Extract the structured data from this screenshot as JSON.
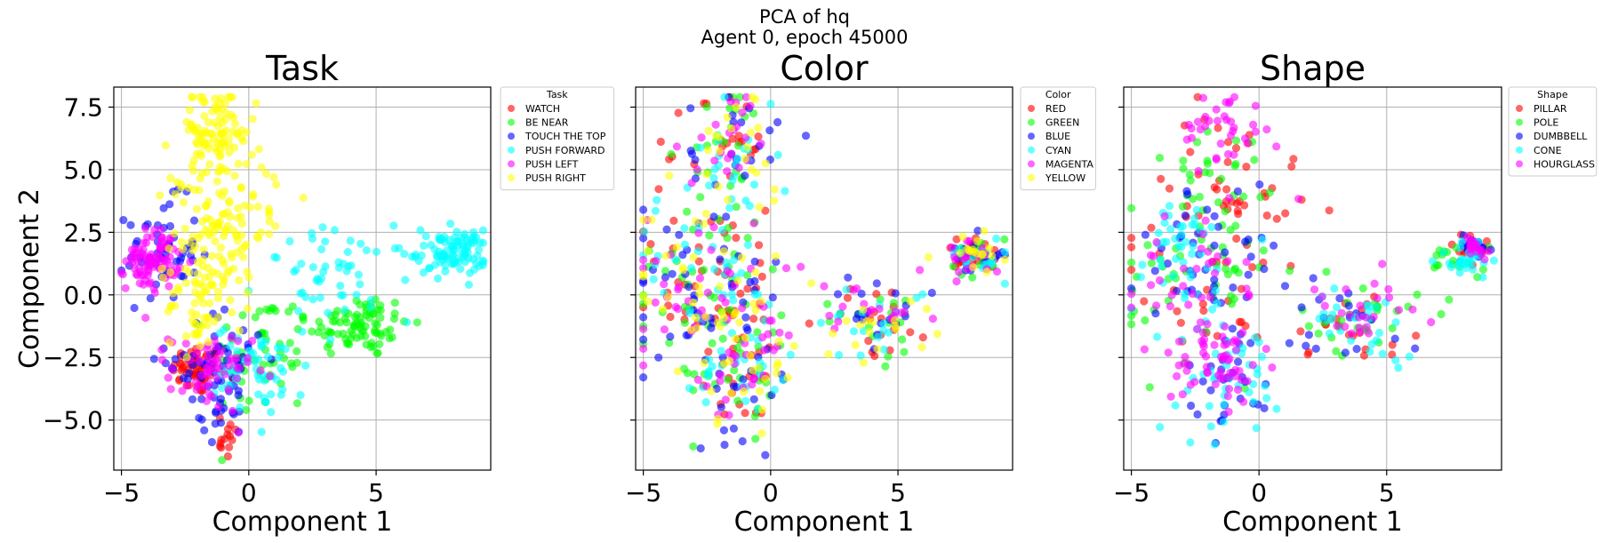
{
  "suptitle": {
    "line1": "PCA of hq",
    "line2": "Agent 0, epoch 45000"
  },
  "chart_data": [
    {
      "type": "scatter",
      "title": "Task",
      "xlabel": "Component 1",
      "ylabel": "Component 2",
      "xlim": [
        -5.3,
        9.5
      ],
      "ylim": [
        -7.0,
        8.3
      ],
      "xticks": [
        -5,
        0,
        5
      ],
      "yticks": [
        -5.0,
        -2.5,
        0.0,
        2.5,
        5.0,
        7.5
      ],
      "grid": true,
      "legend_title": "Task",
      "legend_placement": "outside upper right",
      "series": [
        {
          "name": "WATCH",
          "color": "#ff0000",
          "clusters": [
            {
              "cx": -2.0,
              "cy": -3.0,
              "sx": 0.5,
              "sy": 0.5,
              "n": 55
            },
            {
              "cx": -0.9,
              "cy": -5.6,
              "sx": 0.3,
              "sy": 0.5,
              "n": 14
            }
          ]
        },
        {
          "name": "BE NEAR",
          "color": "#00ff00",
          "clusters": [
            {
              "cx": 4.3,
              "cy": -1.2,
              "sx": 1.0,
              "sy": 0.65,
              "n": 90
            },
            {
              "cx": 0.5,
              "cy": -2.5,
              "sx": 1.0,
              "sy": 1.3,
              "n": 55
            }
          ]
        },
        {
          "name": "TOUCH THE TOP",
          "color": "#0000ff",
          "clusters": [
            {
              "cx": -3.4,
              "cy": 1.8,
              "sx": 0.7,
              "sy": 1.0,
              "n": 55
            },
            {
              "cx": -1.2,
              "cy": -2.6,
              "sx": 1.0,
              "sy": 1.0,
              "n": 55
            },
            {
              "cx": -1.0,
              "cy": -4.7,
              "sx": 0.4,
              "sy": 0.6,
              "n": 18
            }
          ]
        },
        {
          "name": "PUSH FORWARD",
          "color": "#00ffff",
          "clusters": [
            {
              "cx": 8.0,
              "cy": 1.7,
              "sx": 0.7,
              "sy": 0.45,
              "n": 95
            },
            {
              "cx": 3.5,
              "cy": 0.8,
              "sx": 1.5,
              "sy": 0.9,
              "n": 55
            },
            {
              "cx": 0.5,
              "cy": -3.0,
              "sx": 0.9,
              "sy": 0.9,
              "n": 55
            }
          ]
        },
        {
          "name": "PUSH LEFT",
          "color": "#ff00ff",
          "clusters": [
            {
              "cx": -3.8,
              "cy": 1.4,
              "sx": 0.5,
              "sy": 0.6,
              "n": 90
            },
            {
              "cx": -1.5,
              "cy": -3.1,
              "sx": 0.8,
              "sy": 0.8,
              "n": 60
            }
          ]
        },
        {
          "name": "PUSH RIGHT",
          "color": "#ffff00",
          "clusters": [
            {
              "cx": -1.4,
              "cy": 6.4,
              "sx": 0.8,
              "sy": 0.9,
              "n": 100
            },
            {
              "cx": -1.2,
              "cy": 2.5,
              "sx": 0.9,
              "sy": 1.5,
              "n": 110
            },
            {
              "cx": -2.0,
              "cy": -0.5,
              "sx": 0.6,
              "sy": 0.9,
              "n": 50
            },
            {
              "cx": 0.3,
              "cy": 4.0,
              "sx": 0.8,
              "sy": 0.7,
              "n": 15
            }
          ]
        }
      ]
    },
    {
      "type": "scatter",
      "title": "Color",
      "xlabel": "Component 1",
      "ylabel": "",
      "xlim": [
        -5.3,
        9.5
      ],
      "ylim": [
        -7.0,
        8.3
      ],
      "xticks": [
        -5,
        0,
        5
      ],
      "yticks": [
        -5.0,
        -2.5,
        0.0,
        2.5,
        5.0,
        7.5
      ],
      "grid": true,
      "legend_title": "Color",
      "legend_placement": "outside upper right",
      "series": [
        {
          "name": "RED",
          "color": "#ff0000",
          "clusters": [
            {
              "cx": -1.5,
              "cy": 5.8,
              "sx": 0.9,
              "sy": 1.3,
              "n": 22
            },
            {
              "cx": -2.5,
              "cy": 0.5,
              "sx": 1.6,
              "sy": 1.8,
              "n": 45
            },
            {
              "cx": -1.0,
              "cy": -3.2,
              "sx": 1.0,
              "sy": 1.2,
              "n": 22
            },
            {
              "cx": 4.2,
              "cy": -1.0,
              "sx": 1.1,
              "sy": 0.8,
              "n": 18
            },
            {
              "cx": 8.0,
              "cy": 1.6,
              "sx": 0.6,
              "sy": 0.4,
              "n": 18
            }
          ]
        },
        {
          "name": "GREEN",
          "color": "#00ff00",
          "clusters": [
            {
              "cx": -1.5,
              "cy": 5.8,
              "sx": 0.9,
              "sy": 1.3,
              "n": 22
            },
            {
              "cx": -2.5,
              "cy": 0.5,
              "sx": 1.6,
              "sy": 1.8,
              "n": 45
            },
            {
              "cx": -1.0,
              "cy": -3.2,
              "sx": 1.0,
              "sy": 1.2,
              "n": 22
            },
            {
              "cx": 4.2,
              "cy": -1.0,
              "sx": 1.1,
              "sy": 0.8,
              "n": 18
            },
            {
              "cx": 8.0,
              "cy": 1.6,
              "sx": 0.6,
              "sy": 0.4,
              "n": 18
            }
          ]
        },
        {
          "name": "BLUE",
          "color": "#0000ff",
          "clusters": [
            {
              "cx": -1.5,
              "cy": 5.8,
              "sx": 0.9,
              "sy": 1.3,
              "n": 22
            },
            {
              "cx": -2.5,
              "cy": 0.5,
              "sx": 1.6,
              "sy": 1.8,
              "n": 45
            },
            {
              "cx": -1.0,
              "cy": -3.2,
              "sx": 1.0,
              "sy": 1.2,
              "n": 22
            },
            {
              "cx": 4.2,
              "cy": -1.0,
              "sx": 1.1,
              "sy": 0.8,
              "n": 18
            },
            {
              "cx": 8.0,
              "cy": 1.6,
              "sx": 0.6,
              "sy": 0.4,
              "n": 18
            }
          ]
        },
        {
          "name": "CYAN",
          "color": "#00ffff",
          "clusters": [
            {
              "cx": -1.5,
              "cy": 5.8,
              "sx": 0.9,
              "sy": 1.3,
              "n": 22
            },
            {
              "cx": -2.5,
              "cy": 0.5,
              "sx": 1.6,
              "sy": 1.8,
              "n": 45
            },
            {
              "cx": -1.0,
              "cy": -3.2,
              "sx": 1.0,
              "sy": 1.2,
              "n": 22
            },
            {
              "cx": 4.2,
              "cy": -1.0,
              "sx": 1.1,
              "sy": 0.8,
              "n": 18
            },
            {
              "cx": 8.0,
              "cy": 1.6,
              "sx": 0.6,
              "sy": 0.4,
              "n": 18
            }
          ]
        },
        {
          "name": "MAGENTA",
          "color": "#ff00ff",
          "clusters": [
            {
              "cx": -1.5,
              "cy": 5.8,
              "sx": 0.9,
              "sy": 1.3,
              "n": 22
            },
            {
              "cx": -2.5,
              "cy": 0.5,
              "sx": 1.6,
              "sy": 1.8,
              "n": 45
            },
            {
              "cx": -1.0,
              "cy": -3.2,
              "sx": 1.0,
              "sy": 1.2,
              "n": 22
            },
            {
              "cx": 4.2,
              "cy": -1.0,
              "sx": 1.1,
              "sy": 0.8,
              "n": 18
            },
            {
              "cx": 8.0,
              "cy": 1.6,
              "sx": 0.6,
              "sy": 0.4,
              "n": 18
            }
          ]
        },
        {
          "name": "YELLOW",
          "color": "#ffff00",
          "clusters": [
            {
              "cx": -1.5,
              "cy": 5.8,
              "sx": 0.9,
              "sy": 1.3,
              "n": 22
            },
            {
              "cx": -2.5,
              "cy": 0.5,
              "sx": 1.6,
              "sy": 1.8,
              "n": 45
            },
            {
              "cx": -1.0,
              "cy": -3.2,
              "sx": 1.0,
              "sy": 1.2,
              "n": 22
            },
            {
              "cx": 4.2,
              "cy": -1.0,
              "sx": 1.1,
              "sy": 0.8,
              "n": 18
            },
            {
              "cx": 8.0,
              "cy": 1.6,
              "sx": 0.6,
              "sy": 0.4,
              "n": 18
            }
          ]
        }
      ]
    },
    {
      "type": "scatter",
      "title": "Shape",
      "xlabel": "Component 1",
      "ylabel": "",
      "xlim": [
        -5.3,
        9.5
      ],
      "ylim": [
        -7.0,
        8.3
      ],
      "xticks": [
        -5,
        0,
        5
      ],
      "yticks": [
        -5.0,
        -2.5,
        0.0,
        2.5,
        5.0,
        7.5
      ],
      "grid": true,
      "legend_title": "Shape",
      "legend_placement": "outside upper right",
      "series": [
        {
          "name": "PILLAR",
          "color": "#ff0000",
          "clusters": [
            {
              "cx": -0.8,
              "cy": 4.6,
              "sx": 1.4,
              "sy": 1.4,
              "n": 40
            },
            {
              "cx": -2.5,
              "cy": 0.5,
              "sx": 1.4,
              "sy": 1.5,
              "n": 30
            },
            {
              "cx": 3.5,
              "cy": -1.2,
              "sx": 1.2,
              "sy": 0.7,
              "n": 20
            },
            {
              "cx": 8.3,
              "cy": 1.9,
              "sx": 0.4,
              "sy": 0.3,
              "n": 20
            }
          ]
        },
        {
          "name": "POLE",
          "color": "#00ff00",
          "clusters": [
            {
              "cx": -1.5,
              "cy": 4.5,
              "sx": 1.2,
              "sy": 1.5,
              "n": 30
            },
            {
              "cx": -2.5,
              "cy": 0.5,
              "sx": 1.5,
              "sy": 1.6,
              "n": 45
            },
            {
              "cx": 4.0,
              "cy": -1.0,
              "sx": 1.2,
              "sy": 0.7,
              "n": 30
            },
            {
              "cx": 7.8,
              "cy": 1.5,
              "sx": 0.6,
              "sy": 0.4,
              "n": 18
            }
          ]
        },
        {
          "name": "DUMBBELL",
          "color": "#0000ff",
          "clusters": [
            {
              "cx": -2.0,
              "cy": 1.5,
              "sx": 1.3,
              "sy": 1.5,
              "n": 45
            },
            {
              "cx": -1.0,
              "cy": -3.2,
              "sx": 0.9,
              "sy": 1.1,
              "n": 30
            },
            {
              "cx": 3.8,
              "cy": -0.8,
              "sx": 1.3,
              "sy": 0.8,
              "n": 18
            },
            {
              "cx": 8.3,
              "cy": 2.0,
              "sx": 0.4,
              "sy": 0.3,
              "n": 16
            }
          ]
        },
        {
          "name": "CONE",
          "color": "#00ffff",
          "clusters": [
            {
              "cx": -3.2,
              "cy": 1.5,
              "sx": 1.2,
              "sy": 1.2,
              "n": 45
            },
            {
              "cx": -1.2,
              "cy": -3.2,
              "sx": 1.0,
              "sy": 1.2,
              "n": 45
            },
            {
              "cx": 4.2,
              "cy": -1.1,
              "sx": 1.1,
              "sy": 0.7,
              "n": 28
            },
            {
              "cx": 8.2,
              "cy": 1.5,
              "sx": 0.6,
              "sy": 0.4,
              "n": 30
            }
          ]
        },
        {
          "name": "HOURGLASS",
          "color": "#ff00ff",
          "clusters": [
            {
              "cx": -1.4,
              "cy": 6.6,
              "sx": 0.8,
              "sy": 0.8,
              "n": 35
            },
            {
              "cx": -1.6,
              "cy": -2.6,
              "sx": 0.9,
              "sy": 0.9,
              "n": 60
            },
            {
              "cx": -2.8,
              "cy": 1.0,
              "sx": 1.2,
              "sy": 1.3,
              "n": 35
            },
            {
              "cx": 4.0,
              "cy": -1.0,
              "sx": 1.2,
              "sy": 0.8,
              "n": 25
            },
            {
              "cx": 8.4,
              "cy": 1.9,
              "sx": 0.4,
              "sy": 0.3,
              "n": 18
            }
          ]
        }
      ]
    }
  ]
}
